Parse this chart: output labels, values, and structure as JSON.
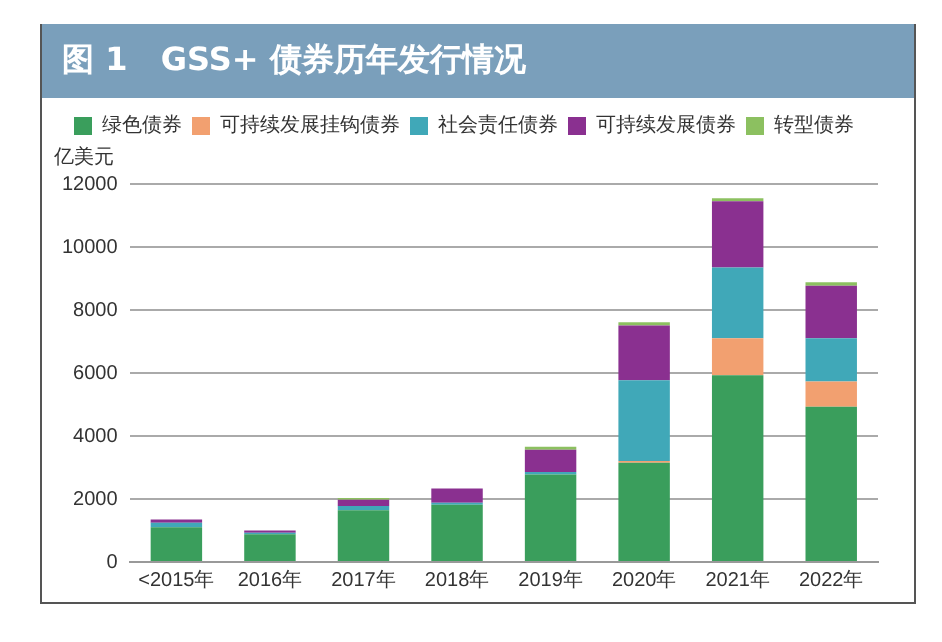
{
  "chart_data": {
    "type": "bar",
    "stacked": true,
    "title": "图 1   GSS+ 债券历年发行情况",
    "ylabel": "亿美元",
    "categories": [
      "<2015年",
      "2016年",
      "2017年",
      "2018年",
      "2019年",
      "2020年",
      "2021年",
      "2022年"
    ],
    "series": [
      {
        "name": "绿色债券",
        "color": "#3a9e5c",
        "values": [
          1100,
          880,
          1640,
          1820,
          2780,
          3150,
          5930,
          4930
        ]
      },
      {
        "name": "可持续发展挂钩债券",
        "color": "#f2a070",
        "values": [
          0,
          0,
          0,
          0,
          0,
          60,
          1170,
          800
        ]
      },
      {
        "name": "社会责任债券",
        "color": "#40a8b8",
        "values": [
          150,
          50,
          140,
          60,
          80,
          2560,
          2250,
          1370
        ]
      },
      {
        "name": "可持续发展债券",
        "color": "#8a3090",
        "values": [
          100,
          70,
          200,
          450,
          700,
          1740,
          2100,
          1670
        ]
      },
      {
        "name": "转型债券",
        "color": "#8cc060",
        "values": [
          0,
          0,
          50,
          0,
          100,
          100,
          100,
          110
        ]
      }
    ],
    "ylim": [
      0,
      12000
    ],
    "yticks": [
      0,
      2000,
      4000,
      6000,
      8000,
      10000,
      12000
    ],
    "grid": "y",
    "legend": "top"
  }
}
